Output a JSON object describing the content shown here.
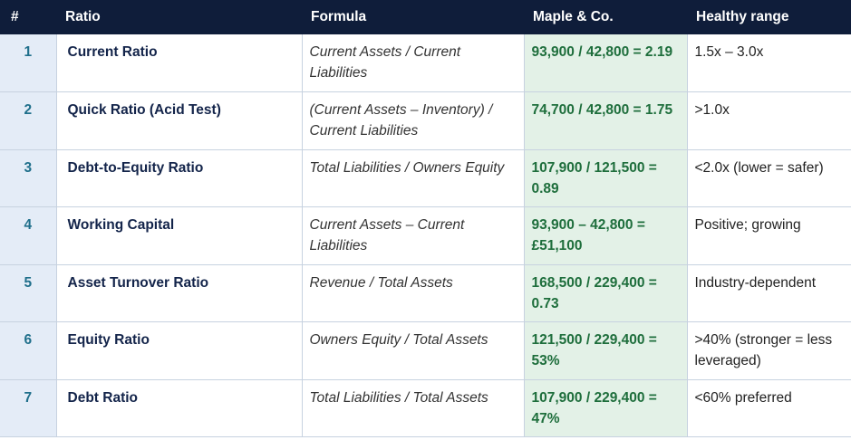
{
  "table": {
    "headers": [
      "#",
      "Ratio",
      "Formula",
      "Maple & Co.",
      "Healthy range"
    ],
    "rows": [
      [
        "1",
        "Current Ratio",
        "Current Assets / Current Liabilities",
        "93,900 / 42,800 = 2.19",
        "1.5x – 3.0x"
      ],
      [
        "2",
        "Quick Ratio (Acid Test)",
        "(Current Assets – Inventory) / Current Liabilities",
        "74,700 / 42,800 = 1.75",
        ">1.0x"
      ],
      [
        "3",
        "Debt-to-Equity Ratio",
        "Total Liabilities / Owners Equity",
        "107,900 / 121,500 = 0.89",
        "<2.0x (lower = safer)"
      ],
      [
        "4",
        "Working Capital",
        "Current Assets – Current Liabilities",
        "93,900 – 42,800 = £51,100",
        "Positive; growing"
      ],
      [
        "5",
        "Asset Turnover Ratio",
        "Revenue / Total Assets",
        "168,500 / 229,400 = 0.73",
        "Industry-dependent"
      ],
      [
        "6",
        "Equity Ratio",
        "Owners Equity / Total Assets",
        "121,500 / 229,400 = 53%",
        ">40% (stronger = less leveraged)"
      ],
      [
        "7",
        "Debt Ratio",
        "Total Liabilities / Total Assets",
        "107,900 / 229,400 = 47%",
        "<60% preferred"
      ]
    ]
  }
}
